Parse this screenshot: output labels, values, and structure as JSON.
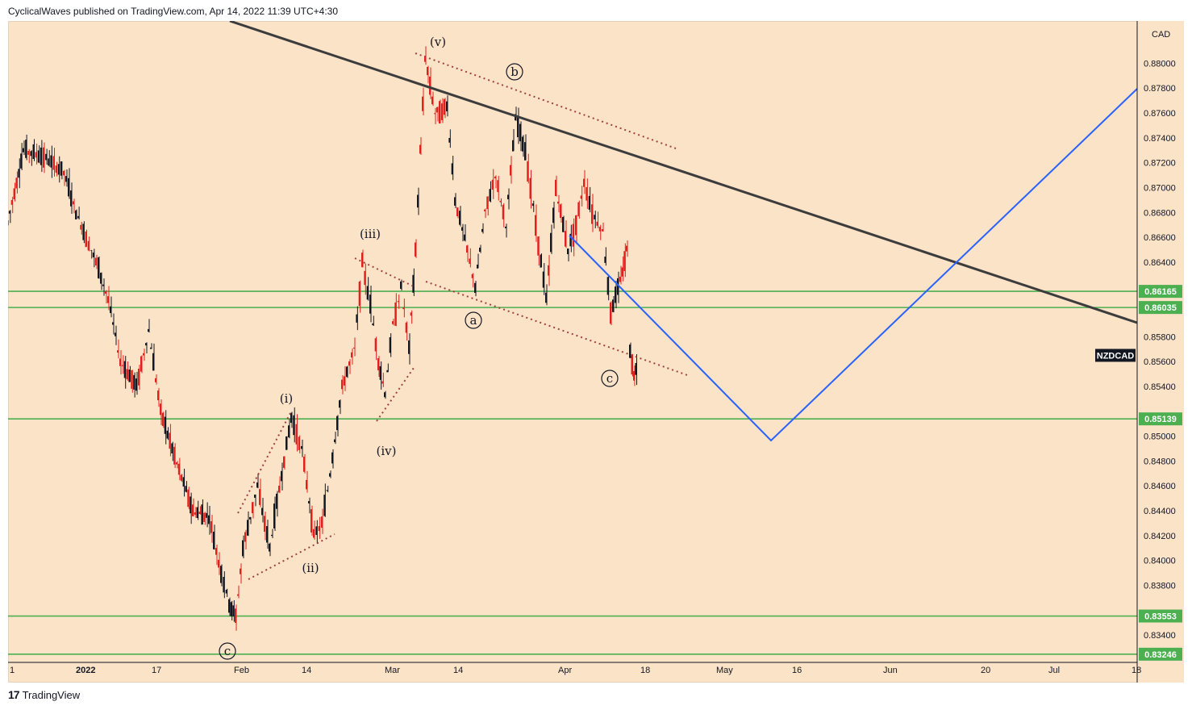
{
  "header": {
    "publisher": "CyclicalWaves published on TradingView.com, Apr 14, 2022 11:39 UTC+4:30"
  },
  "footer": {
    "brand": "TradingView",
    "logo_text": "17"
  },
  "chart_data": {
    "type": "candlestick",
    "symbol": "NZDCAD",
    "currency": "CAD",
    "x_tick_labels": [
      "1",
      "2022",
      "17",
      "Feb",
      "14",
      "Mar",
      "14",
      "Apr",
      "18",
      "May",
      "16",
      "Jun",
      "20",
      "Jul",
      "18"
    ],
    "y_tick_labels": [
      "0.88000",
      "0.87800",
      "0.87600",
      "0.87400",
      "0.87200",
      "0.87000",
      "0.86800",
      "0.86600",
      "0.86400",
      "0.85800",
      "0.85600",
      "0.85400",
      "0.85000",
      "0.84800",
      "0.84600",
      "0.84400",
      "0.84200",
      "0.84000",
      "0.83800",
      "0.83400"
    ],
    "ylim": [
      0.8318,
      0.8834
    ],
    "horizontal_levels": [
      {
        "label": "0.86165",
        "value": 0.86165,
        "color": "#4caf50"
      },
      {
        "label": "0.86035",
        "value": 0.86035,
        "color": "#4caf50"
      },
      {
        "label": "0.85139",
        "value": 0.85139,
        "color": "#4caf50"
      },
      {
        "label": "0.83553",
        "value": 0.83553,
        "color": "#4caf50"
      },
      {
        "label": "0.83246",
        "value": 0.83246,
        "color": "#4caf50"
      }
    ],
    "wave_labels": [
      {
        "text": "(v)",
        "circled": false
      },
      {
        "text": "b",
        "circled": true
      },
      {
        "text": "(iii)",
        "circled": false
      },
      {
        "text": "a",
        "circled": true
      },
      {
        "text": "c",
        "circled": true
      },
      {
        "text": "(i)",
        "circled": false
      },
      {
        "text": "(iv)",
        "circled": false
      },
      {
        "text": "(ii)",
        "circled": false
      },
      {
        "text": "c",
        "circled": true
      }
    ],
    "colors": {
      "background": "#fbe3c8",
      "candle_up": "#131722",
      "candle_down": "#e0201c",
      "trendline": "#3c3c3c",
      "projection": "#2962ff",
      "channel": "#a0413f",
      "level": "#4caf50"
    }
  }
}
